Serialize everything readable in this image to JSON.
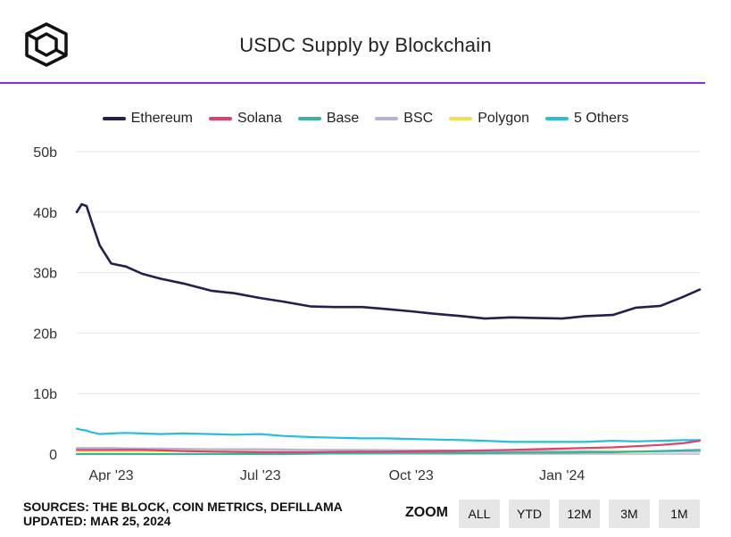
{
  "header": {
    "title": "USDC Supply by Blockchain"
  },
  "footer": {
    "sources": "SOURCES: THE BLOCK, COIN METRICS, DEFILLAMA",
    "updated": "UPDATED: MAR 25, 2024"
  },
  "zoom": {
    "label": "ZOOM",
    "buttons": [
      "ALL",
      "YTD",
      "12M",
      "3M",
      "1M"
    ]
  },
  "colors": {
    "accent_rule": "#8a2be2",
    "Ethereum": "#231f4f",
    "Solana": "#e0416a",
    "Base": "#35b4a0",
    "BSC": "#b3b3d9",
    "Polygon": "#f2e14c",
    "5 Others": "#25bfdc"
  },
  "chart_data": {
    "type": "line",
    "title": "USDC Supply by Blockchain",
    "xlabel": "",
    "ylabel": "",
    "x_ticks": [
      "Apr '23",
      "Jul '23",
      "Oct '23",
      "Jan '24"
    ],
    "x_range": [
      "2023-03-11",
      "2024-03-25"
    ],
    "y_ticks": [
      "0",
      "10b",
      "20b",
      "30b",
      "40b",
      "50b"
    ],
    "ylim": [
      0,
      50
    ],
    "y_unit": "billions USD",
    "grid": "horizontal",
    "legend": "top",
    "x": [
      "2023-03-11",
      "2023-03-14",
      "2023-03-17",
      "2023-03-20",
      "2023-03-25",
      "2023-04-01",
      "2023-04-10",
      "2023-04-20",
      "2023-05-01",
      "2023-05-15",
      "2023-06-01",
      "2023-06-15",
      "2023-07-01",
      "2023-07-15",
      "2023-08-01",
      "2023-08-15",
      "2023-09-01",
      "2023-09-15",
      "2023-10-01",
      "2023-10-15",
      "2023-11-01",
      "2023-11-15",
      "2023-12-01",
      "2023-12-15",
      "2024-01-01",
      "2024-01-15",
      "2024-02-01",
      "2024-02-15",
      "2024-03-01",
      "2024-03-15",
      "2024-03-25"
    ],
    "series": [
      {
        "name": "Ethereum",
        "values": [
          40.0,
          41.3,
          41.0,
          38.5,
          34.5,
          31.5,
          31.0,
          29.8,
          29.0,
          28.2,
          27.0,
          26.6,
          25.8,
          25.2,
          24.4,
          24.3,
          24.3,
          24.0,
          23.6,
          23.2,
          22.8,
          22.4,
          22.6,
          22.5,
          22.4,
          22.8,
          23.0,
          24.2,
          24.5,
          26.0,
          27.2
        ]
      },
      {
        "name": "Solana",
        "values": [
          0.7,
          0.7,
          0.7,
          0.7,
          0.7,
          0.7,
          0.7,
          0.7,
          0.6,
          0.5,
          0.4,
          0.35,
          0.3,
          0.3,
          0.3,
          0.35,
          0.4,
          0.4,
          0.45,
          0.5,
          0.55,
          0.6,
          0.7,
          0.8,
          0.9,
          1.0,
          1.1,
          1.3,
          1.5,
          1.8,
          2.2
        ]
      },
      {
        "name": "Base",
        "values": [
          0,
          0,
          0,
          0,
          0,
          0,
          0,
          0,
          0,
          0,
          0,
          0,
          0,
          0,
          0.05,
          0.1,
          0.15,
          0.2,
          0.2,
          0.2,
          0.2,
          0.2,
          0.25,
          0.25,
          0.25,
          0.3,
          0.3,
          0.4,
          0.5,
          0.6,
          0.7
        ]
      },
      {
        "name": "BSC",
        "values": [
          1.0,
          1.0,
          1.0,
          1.0,
          1.0,
          1.0,
          0.95,
          0.9,
          0.9,
          0.85,
          0.8,
          0.8,
          0.8,
          0.75,
          0.7,
          0.7,
          0.7,
          0.65,
          0.6,
          0.6,
          0.55,
          0.5,
          0.5,
          0.5,
          0.45,
          0.45,
          0.4,
          0.4,
          0.4,
          0.4,
          0.4
        ]
      },
      {
        "name": "Polygon",
        "values": [
          0.5,
          0.5,
          0.5,
          0.5,
          0.5,
          0.5,
          0.5,
          0.5,
          0.5,
          0.5,
          0.5,
          0.5,
          0.5,
          0.5,
          0.5,
          0.5,
          0.5,
          0.5,
          0.5,
          0.45,
          0.45,
          0.45,
          0.45,
          0.45,
          0.45,
          0.45,
          0.45,
          0.45,
          0.45,
          0.45,
          0.45
        ]
      },
      {
        "name": "5 Others",
        "values": [
          4.2,
          4.0,
          3.9,
          3.6,
          3.3,
          3.4,
          3.5,
          3.4,
          3.3,
          3.4,
          3.3,
          3.2,
          3.3,
          3.0,
          2.8,
          2.7,
          2.6,
          2.6,
          2.5,
          2.4,
          2.3,
          2.2,
          2.0,
          2.0,
          2.0,
          2.0,
          2.2,
          2.1,
          2.2,
          2.3,
          2.3
        ]
      }
    ]
  }
}
